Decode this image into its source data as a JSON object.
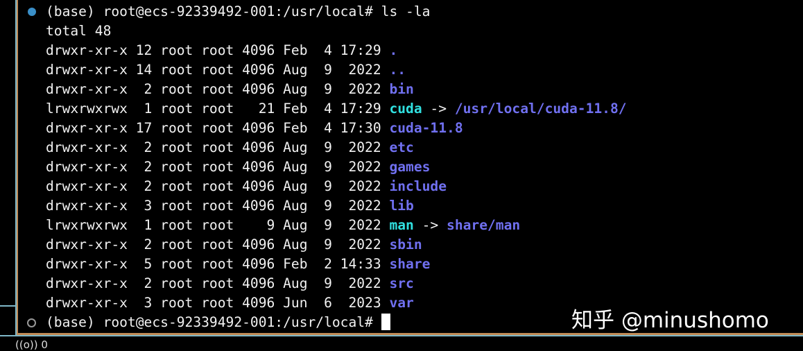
{
  "terminal": {
    "prompt": "(base) root@ecs-92339492-001:/usr/local# ",
    "command": "ls -la",
    "total": "total 48",
    "entries": [
      {
        "meta": "drwxr-xr-x 12 root root 4096 Feb  4 17:29 ",
        "name": "."
      },
      {
        "meta": "drwxr-xr-x 14 root root 4096 Aug  9  2022 ",
        "name": ".."
      },
      {
        "meta": "drwxr-xr-x  2 root root 4096 Aug  9  2022 ",
        "name": "bin"
      },
      {
        "meta": "lrwxrwxrwx  1 root root   21 Feb  4 17:29 ",
        "name": "cuda",
        "arrow": " -> ",
        "target": "/usr/local/cuda-11.8/"
      },
      {
        "meta": "drwxr-xr-x 17 root root 4096 Feb  4 17:30 ",
        "name": "cuda-11.8"
      },
      {
        "meta": "drwxr-xr-x  2 root root 4096 Aug  9  2022 ",
        "name": "etc"
      },
      {
        "meta": "drwxr-xr-x  2 root root 4096 Aug  9  2022 ",
        "name": "games"
      },
      {
        "meta": "drwxr-xr-x  2 root root 4096 Aug  9  2022 ",
        "name": "include"
      },
      {
        "meta": "drwxr-xr-x  3 root root 4096 Aug  9  2022 ",
        "name": "lib"
      },
      {
        "meta": "lrwxrwxrwx  1 root root    9 Aug  9  2022 ",
        "name": "man",
        "arrow": " -> ",
        "target": "share/man"
      },
      {
        "meta": "drwxr-xr-x  2 root root 4096 Aug  9  2022 ",
        "name": "sbin"
      },
      {
        "meta": "drwxr-xr-x  5 root root 4096 Feb  2 14:33 ",
        "name": "share"
      },
      {
        "meta": "drwxr-xr-x  2 root root 4096 Aug  9  2022 ",
        "name": "src"
      },
      {
        "meta": "drwxr-xr-x  3 root root 4096 Jun  6  2023 ",
        "name": "var"
      }
    ]
  },
  "status_bar": {
    "icon": "broadcast-icon",
    "glyph": "((o))",
    "count": "0"
  },
  "watermark": "知乎 @minushomo",
  "colors": {
    "dir": "#7070f0",
    "symlink": "#30e0e0",
    "active_dot": "#3a8fc8",
    "panel_border": "#c08a55",
    "divider": "#7fb8c8"
  }
}
